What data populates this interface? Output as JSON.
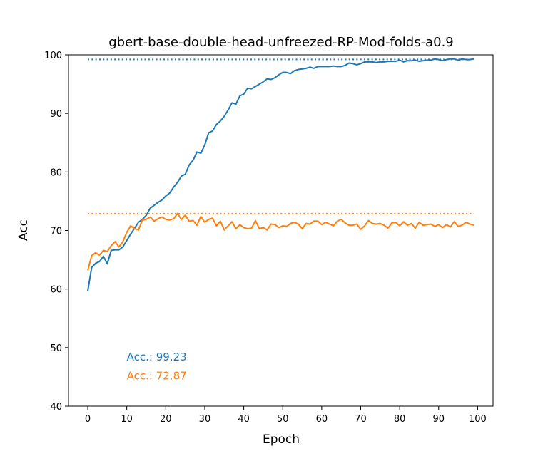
{
  "chart_data": {
    "type": "line",
    "title": "gbert-base-double-head-unfreezed-RP-Mod-folds-a0.9",
    "xlabel": "Epoch",
    "ylabel": "Acc",
    "xlim": [
      -4.95,
      103.95
    ],
    "ylim": [
      40,
      100
    ],
    "xticks": [
      0,
      10,
      20,
      30,
      40,
      50,
      60,
      70,
      80,
      90,
      100
    ],
    "yticks": [
      40,
      50,
      60,
      70,
      80,
      90,
      100
    ],
    "grid": false,
    "legend": "none",
    "series": [
      {
        "color": "#1f77b4",
        "x": [
          0,
          1,
          2,
          3,
          4,
          5,
          6,
          7,
          8,
          9,
          10,
          11,
          12,
          13,
          14,
          15,
          16,
          17,
          18,
          19,
          20,
          21,
          22,
          23,
          24,
          25,
          26,
          27,
          28,
          29,
          30,
          31,
          32,
          33,
          34,
          35,
          36,
          37,
          38,
          39,
          40,
          41,
          42,
          43,
          44,
          45,
          46,
          47,
          48,
          49,
          50,
          51,
          52,
          53,
          54,
          55,
          56,
          57,
          58,
          59,
          60,
          61,
          62,
          63,
          64,
          65,
          66,
          67,
          68,
          69,
          70,
          71,
          72,
          73,
          74,
          75,
          76,
          77,
          78,
          79,
          80,
          81,
          82,
          83,
          84,
          85,
          86,
          87,
          88,
          89,
          90,
          91,
          92,
          93,
          94,
          95,
          96,
          97,
          98,
          99
        ],
        "values": [
          59.7,
          63.7,
          64.4,
          64.7,
          65.6,
          64.3,
          66.6,
          66.7,
          66.7,
          67.2,
          68.3,
          69.4,
          70.4,
          71.4,
          71.9,
          72.6,
          73.8,
          74.3,
          74.8,
          75.2,
          75.9,
          76.4,
          77.4,
          78.2,
          79.3,
          79.6,
          81.2,
          82.0,
          83.4,
          83.2,
          84.6,
          86.7,
          87.0,
          88.1,
          88.7,
          89.5,
          90.6,
          91.8,
          91.6,
          93.0,
          93.3,
          94.3,
          94.2,
          94.6,
          95.0,
          95.4,
          95.9,
          95.8,
          96.1,
          96.6,
          97.0,
          97.0,
          96.8,
          97.3,
          97.5,
          97.6,
          97.7,
          97.9,
          97.7,
          98.0,
          98.0,
          98.0,
          98.0,
          98.1,
          98.0,
          98.0,
          98.2,
          98.6,
          98.5,
          98.3,
          98.5,
          98.8,
          98.8,
          98.8,
          98.7,
          98.8,
          98.8,
          98.9,
          98.9,
          98.9,
          99.1,
          98.8,
          99.0,
          99.0,
          99.1,
          98.9,
          99.0,
          99.1,
          99.1,
          99.3,
          99.2,
          99.0,
          99.2,
          99.3,
          99.3,
          99.1,
          99.3,
          99.2,
          99.2,
          99.3
        ]
      },
      {
        "color": "#ff7f0e",
        "x": [
          0,
          1,
          2,
          3,
          4,
          5,
          6,
          7,
          8,
          9,
          10,
          11,
          12,
          13,
          14,
          15,
          16,
          17,
          18,
          19,
          20,
          21,
          22,
          23,
          24,
          25,
          26,
          27,
          28,
          29,
          30,
          31,
          32,
          33,
          34,
          35,
          36,
          37,
          38,
          39,
          40,
          41,
          42,
          43,
          44,
          45,
          46,
          47,
          48,
          49,
          50,
          51,
          52,
          53,
          54,
          55,
          56,
          57,
          58,
          59,
          60,
          61,
          62,
          63,
          64,
          65,
          66,
          67,
          68,
          69,
          70,
          71,
          72,
          73,
          74,
          75,
          76,
          77,
          78,
          79,
          80,
          81,
          82,
          83,
          84,
          85,
          86,
          87,
          88,
          89,
          90,
          91,
          92,
          93,
          94,
          95,
          96,
          97,
          98,
          99
        ],
        "values": [
          63.2,
          65.7,
          66.2,
          65.8,
          66.6,
          66.4,
          67.4,
          68.1,
          67.2,
          68.1,
          69.7,
          70.8,
          70.3,
          70.1,
          71.8,
          71.9,
          72.3,
          71.6,
          72.0,
          72.3,
          71.9,
          71.8,
          72.0,
          72.9,
          71.9,
          72.6,
          71.6,
          71.7,
          70.9,
          72.4,
          71.4,
          71.9,
          72.1,
          70.8,
          71.6,
          70.1,
          70.8,
          71.5,
          70.3,
          71.0,
          70.5,
          70.3,
          70.4,
          71.7,
          70.3,
          70.5,
          70.1,
          71.1,
          71.0,
          70.5,
          70.8,
          70.7,
          71.2,
          71.4,
          71.1,
          70.3,
          71.2,
          71.1,
          71.6,
          71.6,
          71.0,
          71.4,
          71.1,
          70.8,
          71.6,
          71.9,
          71.3,
          70.9,
          70.9,
          71.1,
          70.2,
          70.8,
          71.7,
          71.2,
          71.1,
          71.2,
          70.9,
          70.4,
          71.3,
          71.4,
          70.8,
          71.5,
          70.9,
          71.2,
          70.4,
          71.4,
          70.9,
          71.0,
          71.1,
          70.7,
          71.0,
          70.5,
          71.0,
          70.6,
          71.5,
          70.7,
          70.9,
          71.4,
          71.1,
          70.9
        ]
      }
    ],
    "reference_lines": [
      {
        "color": "#1f77b4",
        "y": 99.23,
        "x_range": [
          0,
          99
        ],
        "style": "dotted"
      },
      {
        "color": "#ff7f0e",
        "y": 72.87,
        "x_range": [
          0,
          99
        ],
        "style": "dotted"
      }
    ],
    "annotations": [
      {
        "text": "Acc.: 99.23",
        "color": "#1f77b4",
        "x": 10,
        "y": 48.4
      },
      {
        "text": "Acc.: 72.87",
        "color": "#ff7f0e",
        "x": 10,
        "y": 45.2
      }
    ]
  }
}
